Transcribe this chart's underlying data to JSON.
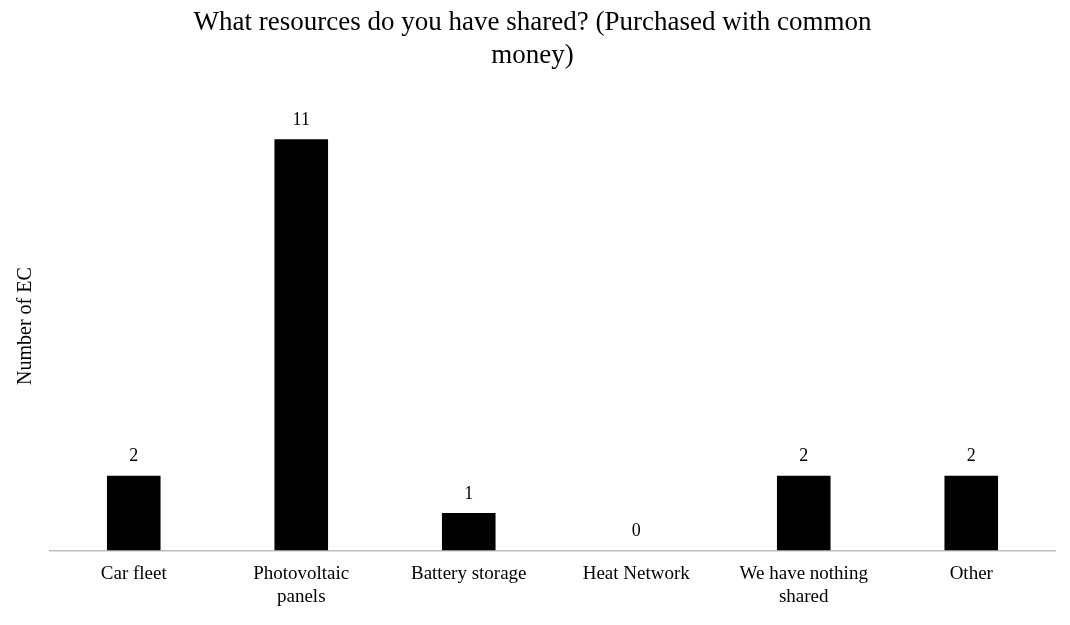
{
  "chart_data": {
    "type": "bar",
    "title": "What resources do you have shared? (Purchased with common money)",
    "ylabel": "Number of EC",
    "categories": [
      "Car fleet",
      "Photovoltaic panels",
      "Battery storage",
      "Heat Network",
      "We have nothing shared",
      "Other"
    ],
    "values": [
      2,
      11,
      1,
      0,
      2,
      2
    ],
    "color": "#000000",
    "data_labels": true,
    "grid": false,
    "legend": false,
    "tick_labels": "x"
  }
}
